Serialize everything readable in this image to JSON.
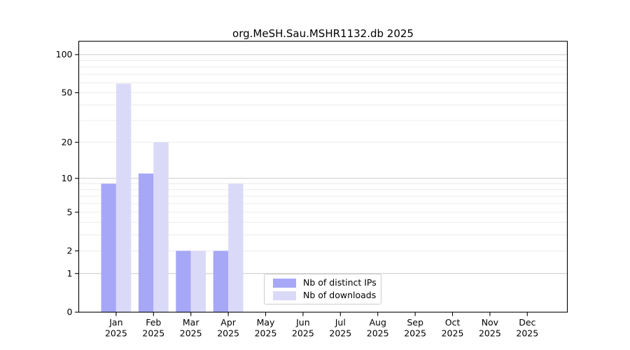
{
  "chart_data": {
    "type": "bar",
    "title": "org.MeSH.Sau.MSHR1132.db 2025",
    "year": "2025",
    "months": [
      "Jan",
      "Feb",
      "Mar",
      "Apr",
      "May",
      "Jun",
      "Jul",
      "Aug",
      "Sep",
      "Oct",
      "Nov",
      "Dec"
    ],
    "categories": [
      "Jan 2025",
      "Feb 2025",
      "Mar 2025",
      "Apr 2025",
      "May 2025",
      "Jun 2025",
      "Jul 2025",
      "Aug 2025",
      "Sep 2025",
      "Oct 2025",
      "Nov 2025",
      "Dec 2025"
    ],
    "series": [
      {
        "name": "Nb of distinct IPs",
        "color": "#a7a7f7",
        "values": [
          9,
          11,
          2,
          2,
          0,
          0,
          0,
          0,
          0,
          0,
          0,
          0
        ]
      },
      {
        "name": "Nb of downloads",
        "color": "#dadaf8",
        "values": [
          59,
          20,
          2,
          9,
          0,
          0,
          0,
          0,
          0,
          0,
          0,
          0
        ]
      }
    ],
    "yticks": [
      0,
      1,
      2,
      5,
      10,
      20,
      50,
      100
    ],
    "yscale": "log1p",
    "ylim": [
      0,
      127
    ],
    "xlabel": "",
    "ylabel": "",
    "grid": "horizontal",
    "legend_position": "inside-bottom-center",
    "colors": {
      "axis": "#000000",
      "major_gridline": "#c9c9c9",
      "minor_gridline": "#ececec",
      "legend_border": "#cccccc",
      "background": "#ffffff"
    }
  }
}
